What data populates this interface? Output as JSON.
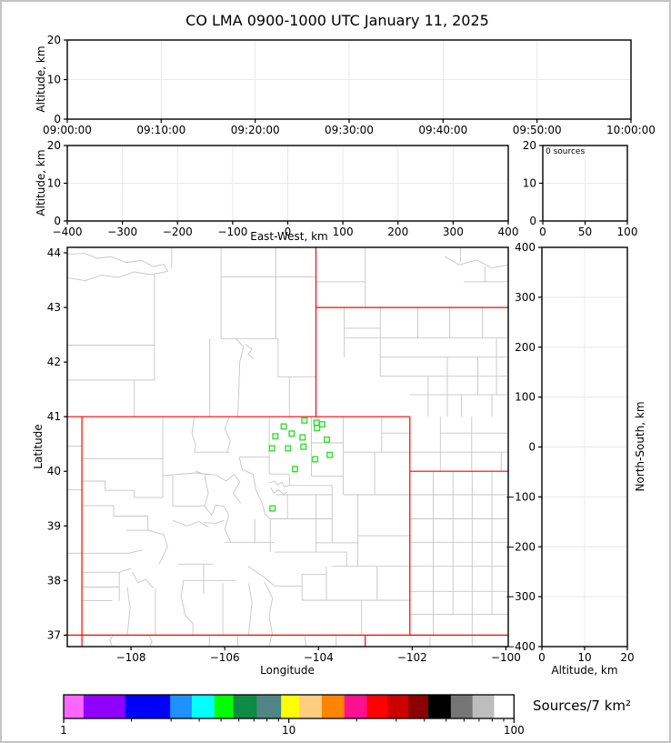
{
  "title": "CO LMA 0900-1000 UTC January 11, 2025",
  "panels": {
    "time_height": {
      "ylabel": "Altitude, km",
      "yticks": [
        "0",
        "10",
        "20"
      ],
      "xticks": [
        "09:00:00",
        "09:10:00",
        "09:20:00",
        "09:30:00",
        "09:40:00",
        "09:50:00",
        "10:00:00"
      ]
    },
    "ew_height": {
      "ylabel": "Altitude, km",
      "xlabel": "East-West, km",
      "yticks": [
        "0",
        "10",
        "20"
      ],
      "xticks": [
        "−400",
        "−300",
        "−200",
        "−100",
        "0",
        "100",
        "200",
        "300",
        "400"
      ]
    },
    "histogram": {
      "annotation": "0 sources",
      "yticks": [
        "0",
        "10",
        "20"
      ],
      "xticks": [
        "0",
        "50",
        "100"
      ]
    },
    "plan_map": {
      "xlabel": "Longitude",
      "ylabel": "Latitude",
      "xticks": [
        "−108",
        "−106",
        "−104",
        "−102",
        "−100"
      ],
      "yticks": [
        "37",
        "38",
        "39",
        "40",
        "41",
        "42",
        "43",
        "44"
      ]
    },
    "ns_height": {
      "xlabel": "Altitude, km",
      "ylabel": "North-South, km",
      "xticks": [
        "0",
        "10",
        "20"
      ],
      "yticks": [
        "−400",
        "−300",
        "−200",
        "−100",
        "0",
        "100",
        "200",
        "300",
        "400"
      ]
    }
  },
  "colorbar": {
    "label": "Sources/7 km²",
    "scale": "log",
    "tick_labels": [
      "1",
      "10",
      "100"
    ],
    "tick_values": [
      1,
      10,
      100
    ],
    "minor_tick_values": [
      2,
      3,
      4,
      5,
      6,
      7,
      8,
      9,
      20,
      30,
      40,
      50,
      60,
      70,
      80,
      90
    ],
    "segment_colors": [
      "#FF66FF",
      "#8F00FF",
      "#0000FF",
      "#1E90FF",
      "#00FFFF",
      "#00FF00",
      "#0E8C46",
      "#4F8585",
      "#FFFF00",
      "#FFCC80",
      "#FF8400",
      "#FF1090",
      "#FF0000",
      "#CD0000",
      "#8B0000",
      "#000000",
      "#757575",
      "#BDBDBD",
      "#FFFFFF"
    ],
    "segment_widths": [
      22,
      46,
      50,
      24,
      25,
      21,
      26,
      27,
      20,
      25,
      25,
      25,
      23,
      23,
      22,
      25,
      24,
      24,
      22
    ]
  },
  "colors": {
    "state_border": "#FF0000",
    "county_border": "#C6C6C6",
    "station_marker": "#33DD33",
    "gridline": "#E9E9E9",
    "frame": "#000000"
  },
  "chart_data": [
    {
      "id": "time_height",
      "type": "scatter",
      "xlabel": "",
      "ylabel": "Altitude, km",
      "xlim": [
        "09:00:00",
        "10:00:00"
      ],
      "ylim": [
        0,
        20
      ],
      "xtick_values": [
        0,
        1,
        2,
        3,
        4,
        5,
        6
      ],
      "ytick_values": [
        0,
        10,
        20
      ],
      "grid": true,
      "points": []
    },
    {
      "id": "ew_height",
      "type": "scatter",
      "xlabel": "East-West, km",
      "ylabel": "Altitude, km",
      "xlim": [
        -400,
        400
      ],
      "ylim": [
        0,
        20
      ],
      "xtick_values": [
        -400,
        -300,
        -200,
        -100,
        0,
        100,
        200,
        300,
        400
      ],
      "ytick_values": [
        0,
        10,
        20
      ],
      "grid": true,
      "points": []
    },
    {
      "id": "source_histogram",
      "type": "line",
      "annotation": "0 sources",
      "xlim": [
        0,
        100
      ],
      "ylim": [
        0,
        20
      ],
      "xtick_values": [
        0,
        50,
        100
      ],
      "ytick_values": [
        0,
        10,
        20
      ],
      "grid": true,
      "points": []
    },
    {
      "id": "plan_map",
      "type": "scatter",
      "xlabel": "Longitude",
      "ylabel": "Latitude",
      "xlim": [
        -109.36,
        -99.95
      ],
      "ylim": [
        36.79,
        44.1
      ],
      "xtick_values": [
        -108,
        -106,
        -104,
        -102,
        -100
      ],
      "ytick_values": [
        37,
        38,
        39,
        40,
        41,
        42,
        43,
        44
      ],
      "grid": false,
      "stations": [
        [
          -104.3,
          40.93
        ],
        [
          -104.04,
          40.89
        ],
        [
          -103.92,
          40.86
        ],
        [
          -104.74,
          40.82
        ],
        [
          -104.03,
          40.79
        ],
        [
          -104.57,
          40.69
        ],
        [
          -104.92,
          40.64
        ],
        [
          -104.34,
          40.62
        ],
        [
          -103.82,
          40.58
        ],
        [
          -104.99,
          40.42
        ],
        [
          -104.65,
          40.42
        ],
        [
          -104.32,
          40.45
        ],
        [
          -103.76,
          40.3
        ],
        [
          -104.07,
          40.22
        ],
        [
          -104.5,
          40.04
        ],
        [
          -104.98,
          39.32
        ]
      ],
      "state_borders": [
        "-109.048,41.00 -109.048,36.79",
        "-104.053,44.10 -104.053,41.00",
        "-102.05,41.00 -102.05,37.00",
        "-104.053,43.00 -99.95,43.00",
        "-109.36,41.00 -102.05,41.00",
        "-102.05,40.00 -99.95,40.00",
        "-109.36,37.00 -99.95,37.00",
        "-103.002,37.00 -103.002,36.79"
      ],
      "county_borders": [
        "-109.36,43.97 -109.00,43.99 -108.72,43.90 -108.42,43.93 -108.10,43.82 -107.78,43.86 -107.52,43.75 -107.30,43.79 -107.22,43.66 -107.58,43.60 -107.92,43.65 -108.28,43.55 -108.62,43.59 -108.98,43.49 -109.36,43.54",
        "-107.13,44.10 -107.13,43.72",
        "-106.08,44.10 -106.08,43.56",
        "-106.08,43.56 -104.05,43.56",
        "-104.91,44.10 -104.91,43.56",
        "-104.91,43.56 -104.91,42.43",
        "-106.08,43.56 -106.08,42.43",
        "-106.08,42.43 -104.86,42.43",
        "-107.50,43.62 -107.50,41.67 -107.93,41.67 -107.93,41.00",
        "-109.36,42.31 -107.50,42.31",
        "-109.36,41.67 -107.93,41.67",
        "-106.32,42.43 -106.32,41.00",
        "-105.76,42.43 -105.60,42.28 -105.68,42.00 -105.72,41.00",
        "-105.55,42.32 -105.42,42.24 -105.50,42.14 -105.38,42.06",
        "-104.86,42.43 -104.86,41.73 -104.05,41.73",
        "-104.62,41.73 -104.62,41.00",
        "-109.36,40.46 -109.05,40.46",
        "-109.36,39.66 -109.05,39.66",
        "-109.36,38.50 -109.05,38.50",
        "-103.00,44.10 -103.00,43.00",
        "-100.97,44.10 -100.97,43.82",
        "-101.30,43.93 -101.00,43.78 -100.62,43.87 -100.30,43.72 -99.95,43.78",
        "-100.45,43.76 -100.45,43.47",
        "-100.90,43.47 -99.95,43.47",
        "-104.05,43.47 -103.00,43.47",
        "-103.45,43.00 -103.45,42.09",
        "-103.45,42.62 -102.68,42.62",
        "-102.68,43.00 -102.68,41.74",
        "-103.45,42.44 -99.95,42.44",
        "-101.88,43.00 -101.88,42.44",
        "-101.20,43.00 -101.20,42.44",
        "-100.50,43.00 -100.50,42.44",
        "-102.68,42.09 -99.95,42.09",
        "-102.68,41.74 -99.95,41.74",
        "-101.25,42.09 -101.25,41.00",
        "-100.60,42.09 -100.60,41.40",
        "-101.66,41.74 -101.66,41.00",
        "-100.20,42.44 -100.20,41.40",
        "-102.05,41.40 -99.95,41.40",
        "-100.95,41.40 -100.95,41.00",
        "-100.30,41.40 -100.30,41.00",
        "-101.40,40.70 -99.95,40.70",
        "-102.05,40.35 -99.95,40.35",
        "-101.40,41.00 -101.40,40.00",
        "-100.73,41.00 -100.73,40.00",
        "-100.10,40.35 -100.10,40.00",
        "-102.05,39.57 -99.95,39.57",
        "-102.05,39.13 -99.95,39.13",
        "-102.05,38.70 -99.95,38.70",
        "-102.05,38.26 -99.95,38.26",
        "-102.05,37.80 -99.95,37.80",
        "-102.05,37.38 -99.95,37.38",
        "-101.55,40.00 -101.55,37.00",
        "-101.13,40.00 -101.13,37.38",
        "-100.72,40.00 -100.72,36.79",
        "-100.30,40.00 -100.30,37.38",
        "-108.38,37.00 -108.45,36.90 -108.40,36.79",
        "-107.62,37.00 -107.55,36.88 -107.60,36.79",
        "-106.33,37.00 -106.33,36.79",
        "-105.72,37.00 -105.72,36.79",
        "-105.00,37.00 -105.05,36.79",
        "-104.30,37.00 -104.26,36.79",
        "-103.62,37.00 -103.62,36.79",
        "-101.62,37.00 -101.62,36.79",
        "-107.32,41.00 -107.32,39.52",
        "-109.05,40.23 -107.32,40.23",
        "-109.05,39.82 -108.55,39.82 -108.55,39.65 -107.93,39.65 -107.93,39.52 -107.32,39.52",
        "-109.05,39.37 -108.37,39.37 -108.37,39.18 -107.64,39.18 -107.64,38.92",
        "-109.05,38.50 -108.05,38.50 -107.76,38.56",
        "-108.10,38.92 -107.64,38.92 -107.30,38.84",
        "-107.30,38.84 -107.22,38.62 -107.40,38.30",
        "-106.65,41.00 -106.70,40.70 -106.62,40.47 -106.65,40.35",
        "-105.90,41.00 -106.00,40.78 -105.88,40.56 -105.95,40.35",
        "-106.65,40.35 -105.90,40.35",
        "-105.69,40.26 -105.05,40.26",
        "-105.05,41.00 -105.05,39.95",
        "-104.15,41.00 -104.15,39.91",
        "-105.05,39.95 -104.62,39.95",
        "-104.15,40.52 -103.47,40.52",
        "-104.15,39.91 -103.47,39.91",
        "-103.47,41.00 -103.47,39.57",
        "-102.65,41.00 -102.65,40.35",
        "-102.65,40.70 -102.05,40.70",
        "-103.47,40.35 -102.05,40.35",
        "-102.80,40.35 -102.80,39.57",
        "-103.47,39.57 -102.05,39.57",
        "-103.16,39.57 -103.16,38.26",
        "-103.16,38.82 -102.05,38.82",
        "-103.71,38.26 -102.05,38.26",
        "-103.08,37.64 -103.08,37.00",
        "-104.35,37.64 -102.05,37.64",
        "-102.75,38.26 -102.75,37.64",
        "-105.69,40.26 -105.63,40.03 -105.40,39.95",
        "-105.40,39.95 -105.33,39.65 -105.20,39.42 -105.14,39.22 -105.03,39.13",
        "-105.05,39.79 -104.93,39.82 -104.87,39.75 -104.78,39.80 -104.73,39.72 -104.62,39.74",
        "-105.02,39.70 -104.95,39.60 -104.85,39.66 -104.75,39.58 -104.66,39.62",
        "-104.90,39.57 -103.71,39.57",
        "-104.62,39.95 -104.62,39.74",
        "-104.62,39.74 -103.71,39.74",
        "-103.71,39.74 -103.71,38.69",
        "-105.03,39.13 -103.71,39.13",
        "-104.05,39.57 -104.05,38.52",
        "-104.66,39.57 -104.66,39.13",
        "-104.05,38.69 -103.16,38.69",
        "-104.94,38.52 -103.40,38.52",
        "-103.40,38.52 -103.40,38.26",
        "-105.03,39.13 -105.03,38.52",
        "-105.36,39.13 -105.36,38.70",
        "-106.00,38.70 -104.94,38.70",
        "-107.32,39.92 -106.62,39.97 -106.18,39.93",
        "-107.11,39.92 -107.11,39.36",
        "-107.11,39.36 -106.43,39.36",
        "-106.43,39.92 -106.35,39.60 -106.43,39.36",
        "-106.18,39.93 -105.97,39.82 -105.80,39.94 -105.68,39.80 -105.82,39.60 -105.66,39.42",
        "-106.62,40.00 -106.38,39.93",
        "-106.43,39.36 -106.28,39.20 -106.19,39.38 -106.02,39.36",
        "-106.45,39.06 -106.19,39.05 -106.02,39.10",
        "-106.02,39.36 -105.91,39.20 -106.00,38.94 -105.87,38.70",
        "-107.11,39.10 -106.80,39.00 -106.55,39.08 -106.35,38.98",
        "-107.00,38.30 -106.25,38.30",
        "-106.45,38.30 -106.45,37.75",
        "-106.88,38.00 -105.75,38.00",
        "-106.04,37.95 -106.04,37.00",
        "-105.49,37.95 -105.42,37.60 -105.49,37.00",
        "-106.88,38.00 -106.93,37.70 -106.85,37.40",
        "-106.88,37.40 -106.68,37.22 -106.68,37.00",
        "-105.50,38.26 -105.16,38.06 -104.94,37.90",
        "-105.15,37.97 -104.98,37.68 -105.05,37.35 -104.98,37.00",
        "-104.94,37.90 -104.35,37.90",
        "-104.35,38.11 -103.83,38.11",
        "-104.35,38.11 -104.35,37.64",
        "-103.83,38.26 -103.83,37.64",
        "-109.05,38.15 -108.25,38.15 -108.00,38.22",
        "-108.25,38.15 -108.25,37.63",
        "-109.05,37.88 -108.25,37.88",
        "-109.05,37.63 -108.40,37.63",
        "-107.97,38.15 -107.85,37.96 -107.68,38.02 -107.52,37.86",
        "-107.48,37.86 -107.48,37.00",
        "-108.08,37.88 -108.02,37.50 -108.08,37.00"
      ]
    },
    {
      "id": "ns_height",
      "type": "scatter",
      "xlabel": "Altitude, km",
      "ylabel": "North-South, km",
      "xlim": [
        0,
        20
      ],
      "ylim": [
        -408,
        408
      ],
      "xtick_values": [
        0,
        10,
        20
      ],
      "ytick_values": [
        -400,
        -300,
        -200,
        -100,
        0,
        100,
        200,
        300,
        400
      ],
      "grid": true,
      "points": []
    }
  ]
}
